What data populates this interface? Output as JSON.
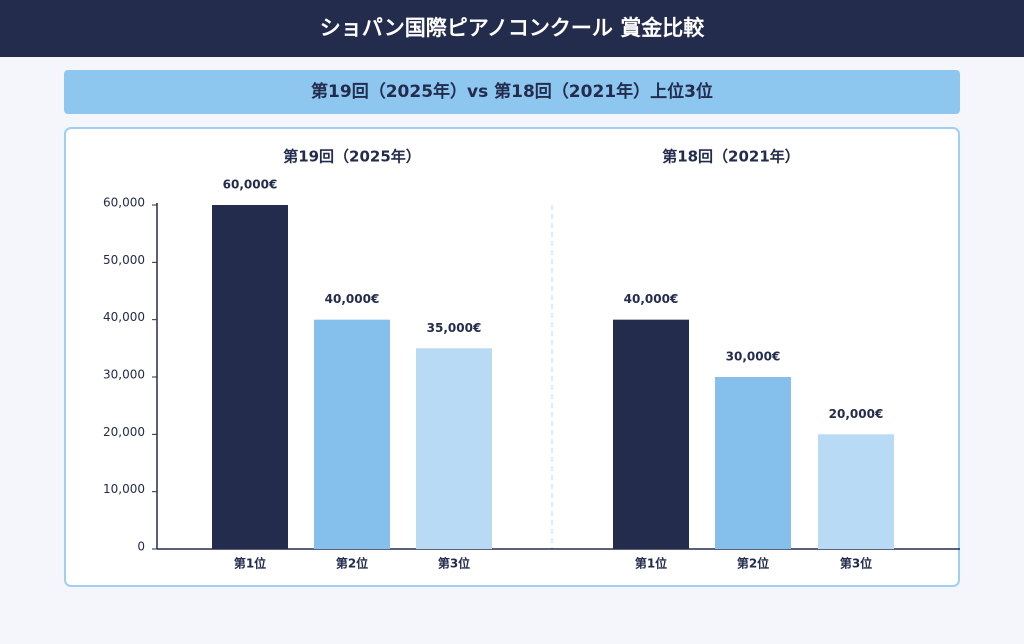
{
  "title": "ショパン国際ピアノコンクール 賞金比較",
  "subtitle": "第19回（2025年）vs 第18回（2021年）上位3位",
  "chart_data": [
    {
      "type": "bar",
      "title": "第19回（2025年）",
      "categories": [
        "第1位",
        "第2位",
        "第3位"
      ],
      "values": [
        60000,
        40000,
        35000
      ],
      "value_labels": [
        "60,000€",
        "40,000€",
        "35,000€"
      ],
      "colors": [
        "#232c4d",
        "#85bfec",
        "#b9daf4"
      ],
      "ylim": [
        0,
        60000
      ],
      "yticks": [
        0,
        {
          "value": 10000,
          "label": "10,000"
        },
        {
          "value": 20000,
          "label": "20,000"
        },
        {
          "value": 30000,
          "label": "30,000"
        },
        {
          "value": 40000,
          "label": "40,000"
        },
        {
          "value": 50000,
          "label": "50,000"
        },
        {
          "value": 60000,
          "label": "60,000"
        }
      ]
    },
    {
      "type": "bar",
      "title": "第18回（2021年）",
      "categories": [
        "第1位",
        "第2位",
        "第3位"
      ],
      "values": [
        40000,
        30000,
        20000
      ],
      "value_labels": [
        "40,000€",
        "30,000€",
        "20,000€"
      ],
      "colors": [
        "#232c4d",
        "#85bfec",
        "#b9daf4"
      ],
      "ylim": [
        0,
        60000
      ]
    }
  ]
}
